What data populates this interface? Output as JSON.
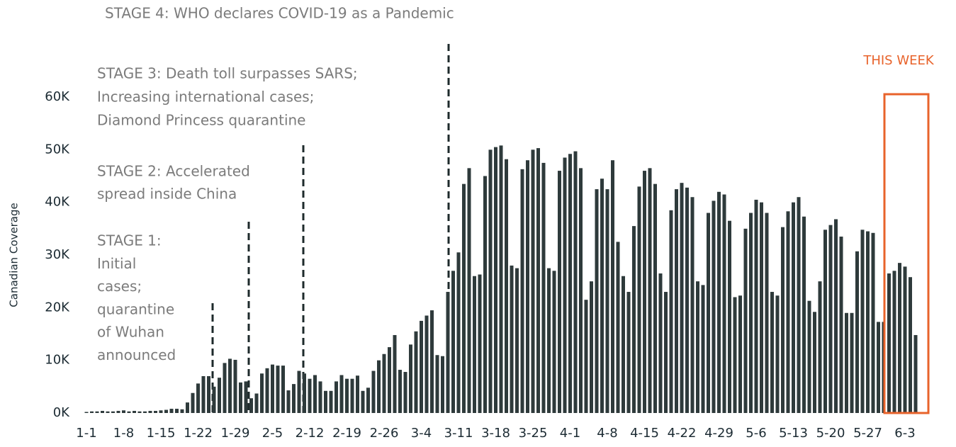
{
  "chart_data": {
    "type": "bar",
    "y_label": "Canadian Coverage",
    "annotations": {
      "stage4": [
        "STAGE 4: WHO declares COVID-19 as a Pandemic"
      ],
      "stage3": [
        "STAGE 3: Death toll surpasses SARS;",
        "Increasing international cases;",
        "Diamond Princess quarantine"
      ],
      "stage2": [
        "STAGE 2: Accelerated",
        "spread inside China"
      ],
      "stage1": [
        "STAGE 1:",
        "Initial",
        "cases;",
        "quarantine",
        "of Wuhan",
        "announced"
      ],
      "this_week": "THIS WEEK"
    },
    "color": "#2e3a3b",
    "highlight_color": "#e8632b",
    "ylim": [
      0,
      60000
    ],
    "yticks": [
      {
        "value": 0,
        "label": "0K"
      },
      {
        "value": 10000,
        "label": "10K"
      },
      {
        "value": 20000,
        "label": "20K"
      },
      {
        "value": 30000,
        "label": "30K"
      },
      {
        "value": 40000,
        "label": "40K"
      },
      {
        "value": 50000,
        "label": "50K"
      },
      {
        "value": 60000,
        "label": "60K"
      }
    ],
    "categories": [
      "1-1",
      null,
      null,
      null,
      null,
      null,
      null,
      "1-8",
      null,
      null,
      null,
      null,
      null,
      null,
      "1-15",
      null,
      null,
      null,
      null,
      null,
      null,
      "1-22",
      null,
      null,
      null,
      null,
      null,
      null,
      "1-29",
      null,
      null,
      null,
      null,
      null,
      null,
      "2-5",
      null,
      null,
      null,
      null,
      null,
      null,
      "2-12",
      null,
      null,
      null,
      null,
      null,
      null,
      "2-19",
      null,
      null,
      null,
      null,
      null,
      null,
      "2-26",
      null,
      null,
      null,
      null,
      null,
      null,
      "3-4",
      null,
      null,
      null,
      null,
      null,
      null,
      "3-11",
      null,
      null,
      null,
      null,
      null,
      null,
      "3-18",
      null,
      null,
      null,
      null,
      null,
      null,
      "3-25",
      null,
      null,
      null,
      null,
      null,
      null,
      "4-1",
      null,
      null,
      null,
      null,
      null,
      null,
      "4-8",
      null,
      null,
      null,
      null,
      null,
      null,
      "4-15",
      null,
      null,
      null,
      null,
      null,
      null,
      "4-22",
      null,
      null,
      null,
      null,
      null,
      null,
      "4-29",
      null,
      null,
      null,
      null,
      null,
      null,
      "5-6",
      null,
      null,
      null,
      null,
      null,
      null,
      "5-13",
      null,
      null,
      null,
      null,
      null,
      null,
      "5-20",
      null,
      null,
      null,
      null,
      null,
      null,
      "5-27",
      null,
      null,
      null,
      null,
      null,
      null,
      "6-3",
      null,
      null
    ],
    "values": [
      200,
      300,
      300,
      400,
      300,
      300,
      400,
      500,
      300,
      400,
      300,
      300,
      400,
      400,
      500,
      600,
      800,
      800,
      700,
      2000,
      3800,
      5600,
      7000,
      7000,
      5000,
      6700,
      9500,
      10300,
      10100,
      5800,
      6000,
      2800,
      3700,
      7500,
      8500,
      9200,
      9000,
      9000,
      4300,
      5500,
      8000,
      7500,
      6500,
      7200,
      6000,
      4200,
      4200,
      6000,
      7200,
      6500,
      6500,
      7100,
      4200,
      4800,
      8000,
      10000,
      11200,
      12500,
      14800,
      8200,
      7800,
      13000,
      15500,
      17500,
      18500,
      19500,
      11000,
      10800,
      23000,
      27000,
      30500,
      43500,
      46500,
      26000,
      26300,
      45000,
      50000,
      50500,
      50800,
      48200,
      28000,
      27500,
      46300,
      48000,
      50000,
      50300,
      47500,
      27500,
      27000,
      46000,
      48500,
      49200,
      49700,
      46500,
      21500,
      25000,
      42500,
      44500,
      42500,
      48000,
      32500,
      26000,
      23000,
      35500,
      43000,
      46000,
      46500,
      43500,
      26500,
      23000,
      38500,
      42500,
      43700,
      42800,
      41000,
      25000,
      24300,
      38000,
      40300,
      42000,
      41500,
      36500,
      22000,
      22300,
      35000,
      38000,
      40500,
      40000,
      38000,
      23000,
      22300,
      35300,
      38300,
      40000,
      41000,
      37300,
      21300,
      19200,
      25000,
      34800,
      35700,
      36800,
      33500,
      19000,
      19000,
      30700,
      34800,
      34500,
      34200,
      17300,
      17300,
      26500,
      27000,
      28500,
      27800,
      25800,
      14800
    ]
  }
}
